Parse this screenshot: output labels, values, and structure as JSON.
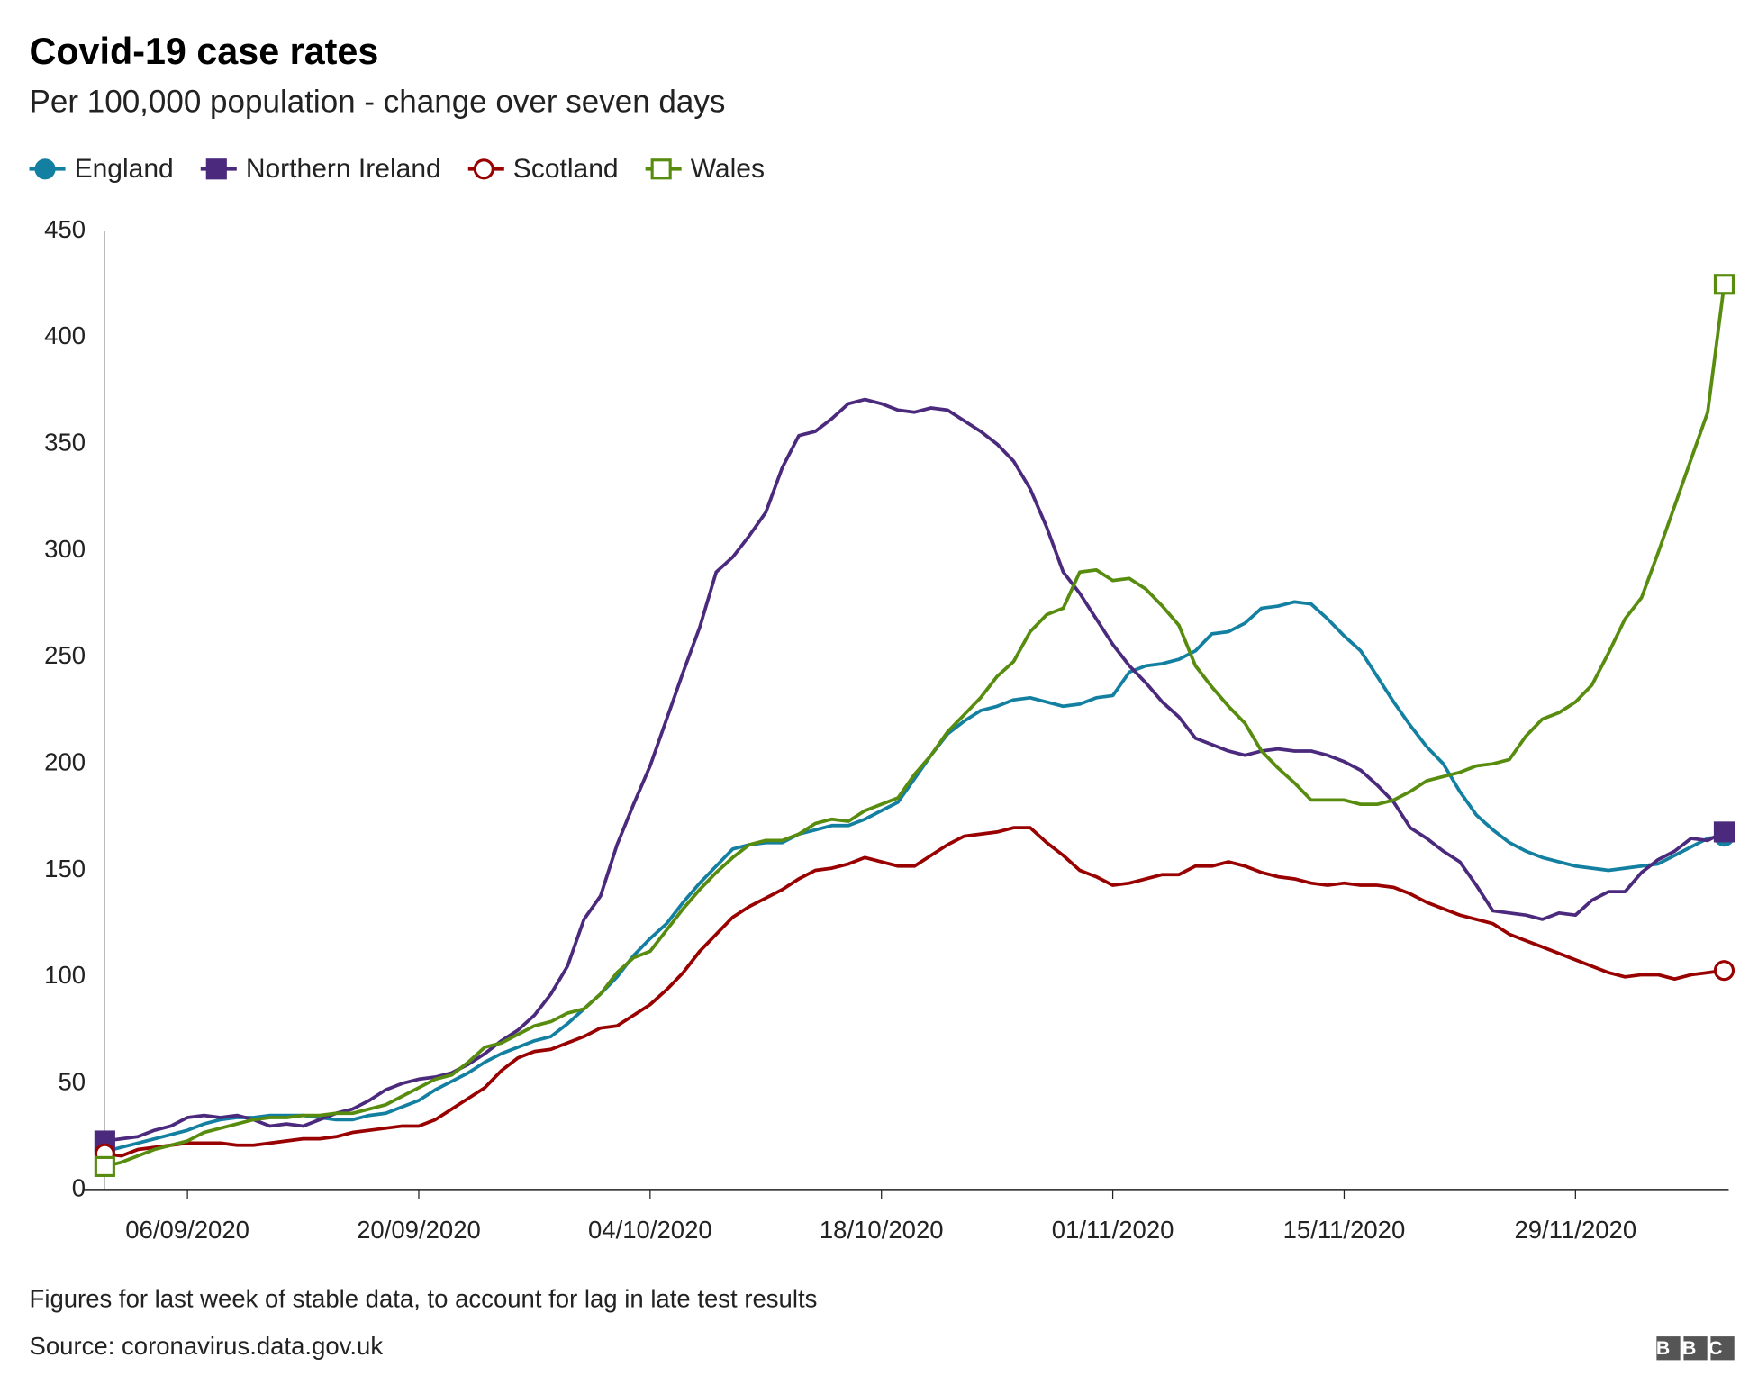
{
  "chart_data": {
    "type": "line",
    "title": "Covid-19 case rates",
    "subtitle": "Per 100,000 population - change over seven days",
    "footnote": "Figures for last week of stable data, to account for lag in late test results",
    "source": "Source: coronavirus.data.gov.uk",
    "logo": "BBC",
    "x": [
      "01/09/2020",
      "02/09/2020",
      "03/09/2020",
      "04/09/2020",
      "05/09/2020",
      "06/09/2020",
      "07/09/2020",
      "08/09/2020",
      "09/09/2020",
      "10/09/2020",
      "11/09/2020",
      "12/09/2020",
      "13/09/2020",
      "14/09/2020",
      "15/09/2020",
      "16/09/2020",
      "17/09/2020",
      "18/09/2020",
      "19/09/2020",
      "20/09/2020",
      "21/09/2020",
      "22/09/2020",
      "23/09/2020",
      "24/09/2020",
      "25/09/2020",
      "26/09/2020",
      "27/09/2020",
      "28/09/2020",
      "29/09/2020",
      "30/09/2020",
      "01/10/2020",
      "02/10/2020",
      "03/10/2020",
      "04/10/2020",
      "05/10/2020",
      "06/10/2020",
      "07/10/2020",
      "08/10/2020",
      "09/10/2020",
      "10/10/2020",
      "11/10/2020",
      "12/10/2020",
      "13/10/2020",
      "14/10/2020",
      "15/10/2020",
      "16/10/2020",
      "17/10/2020",
      "18/10/2020",
      "19/10/2020",
      "20/10/2020",
      "21/10/2020",
      "22/10/2020",
      "23/10/2020",
      "24/10/2020",
      "25/10/2020",
      "26/10/2020",
      "27/10/2020",
      "28/10/2020",
      "29/10/2020",
      "30/10/2020",
      "31/10/2020",
      "01/11/2020",
      "02/11/2020",
      "03/11/2020",
      "04/11/2020",
      "05/11/2020",
      "06/11/2020",
      "07/11/2020",
      "08/11/2020",
      "09/11/2020",
      "10/11/2020",
      "11/11/2020",
      "12/11/2020",
      "13/11/2020",
      "14/11/2020",
      "15/11/2020",
      "16/11/2020",
      "17/11/2020",
      "18/11/2020",
      "19/11/2020",
      "20/11/2020",
      "21/11/2020",
      "22/11/2020",
      "23/11/2020",
      "24/11/2020",
      "25/11/2020",
      "26/11/2020",
      "27/11/2020",
      "28/11/2020",
      "29/11/2020",
      "30/11/2020",
      "01/12/2020",
      "02/12/2020",
      "03/12/2020",
      "04/12/2020",
      "05/12/2020",
      "06/12/2020",
      "07/12/2020",
      "08/12/2020"
    ],
    "xlim": [
      "01/09/2020",
      "08/12/2020"
    ],
    "xticks": [
      "06/09/2020",
      "20/09/2020",
      "04/10/2020",
      "18/10/2020",
      "01/11/2020",
      "15/11/2020",
      "29/11/2020"
    ],
    "ylim": [
      0,
      450
    ],
    "yticks": [
      0,
      50,
      100,
      150,
      200,
      250,
      300,
      350,
      400,
      450
    ],
    "grid": false,
    "legend": "top-left",
    "series": [
      {
        "name": "England",
        "color": "#1380a1",
        "marker": "circle",
        "filled": true,
        "values": [
          18,
          20,
          22,
          24,
          26,
          28,
          31,
          33,
          34,
          34,
          35,
          35,
          35,
          34,
          33,
          33,
          35,
          36,
          39,
          42,
          47,
          51,
          55,
          60,
          64,
          67,
          70,
          72,
          78,
          85,
          92,
          100,
          110,
          118,
          125,
          135,
          144,
          152,
          160,
          162,
          163,
          163,
          167,
          169,
          171,
          171,
          174,
          178,
          182,
          193,
          204,
          214,
          220,
          225,
          227,
          230,
          231,
          229,
          227,
          228,
          231,
          232,
          243,
          246,
          247,
          249,
          253,
          261,
          262,
          266,
          273,
          274,
          276,
          275,
          268,
          260,
          253,
          241,
          229,
          218,
          208,
          200,
          187,
          176,
          169,
          163,
          159,
          156,
          154,
          152,
          151,
          150,
          151,
          152,
          153,
          157,
          161,
          165,
          166
        ]
      },
      {
        "name": "Northern Ireland",
        "color": "#4b2a7d",
        "marker": "square",
        "filled": true,
        "values": [
          23,
          24,
          25,
          28,
          30,
          34,
          35,
          34,
          35,
          33,
          30,
          31,
          30,
          33,
          36,
          38,
          42,
          47,
          50,
          52,
          53,
          55,
          59,
          64,
          70,
          75,
          82,
          92,
          105,
          127,
          138,
          162,
          181,
          199,
          221,
          243,
          264,
          290,
          297,
          307,
          318,
          339,
          354,
          356,
          362,
          369,
          371,
          369,
          366,
          365,
          367,
          366,
          361,
          356,
          350,
          342,
          329,
          311,
          290,
          280,
          268,
          256,
          246,
          238,
          229,
          222,
          212,
          209,
          206,
          204,
          206,
          207,
          206,
          206,
          204,
          201,
          197,
          190,
          182,
          170,
          165,
          159,
          154,
          143,
          131,
          130,
          129,
          127,
          130,
          129,
          136,
          140,
          140,
          149,
          155,
          159,
          165,
          164,
          168
        ]
      },
      {
        "name": "Scotland",
        "color": "#990000",
        "marker": "circle",
        "filled": false,
        "values": [
          17,
          16,
          19,
          20,
          21,
          22,
          22,
          22,
          21,
          21,
          22,
          23,
          24,
          24,
          25,
          27,
          28,
          29,
          30,
          30,
          33,
          38,
          43,
          48,
          56,
          62,
          65,
          66,
          69,
          72,
          76,
          77,
          82,
          87,
          94,
          102,
          112,
          120,
          128,
          133,
          137,
          141,
          146,
          150,
          151,
          153,
          156,
          154,
          152,
          152,
          157,
          162,
          166,
          167,
          168,
          170,
          170,
          163,
          157,
          150,
          147,
          143,
          144,
          146,
          148,
          148,
          152,
          152,
          154,
          152,
          149,
          147,
          146,
          144,
          143,
          144,
          143,
          143,
          142,
          139,
          135,
          132,
          129,
          127,
          125,
          120,
          117,
          114,
          111,
          108,
          105,
          102,
          100,
          101,
          101,
          99,
          101,
          102,
          103
        ]
      },
      {
        "name": "Wales",
        "color": "#588c0f",
        "marker": "square",
        "filled": false,
        "values": [
          11,
          13,
          16,
          19,
          21,
          23,
          27,
          29,
          31,
          33,
          34,
          34,
          35,
          35,
          36,
          36,
          38,
          40,
          44,
          48,
          52,
          54,
          60,
          67,
          69,
          73,
          77,
          79,
          83,
          85,
          92,
          102,
          109,
          112,
          122,
          132,
          141,
          149,
          156,
          162,
          164,
          164,
          167,
          172,
          174,
          173,
          178,
          181,
          184,
          195,
          204,
          215,
          223,
          231,
          241,
          248,
          262,
          270,
          273,
          290,
          291,
          286,
          287,
          282,
          274,
          265,
          246,
          236,
          227,
          219,
          206,
          198,
          191,
          183,
          183,
          183,
          181,
          181,
          183,
          187,
          192,
          194,
          196,
          199,
          200,
          202,
          213,
          221,
          224,
          229,
          237,
          252,
          268,
          278,
          299,
          321,
          343,
          365,
          425
        ]
      }
    ]
  }
}
